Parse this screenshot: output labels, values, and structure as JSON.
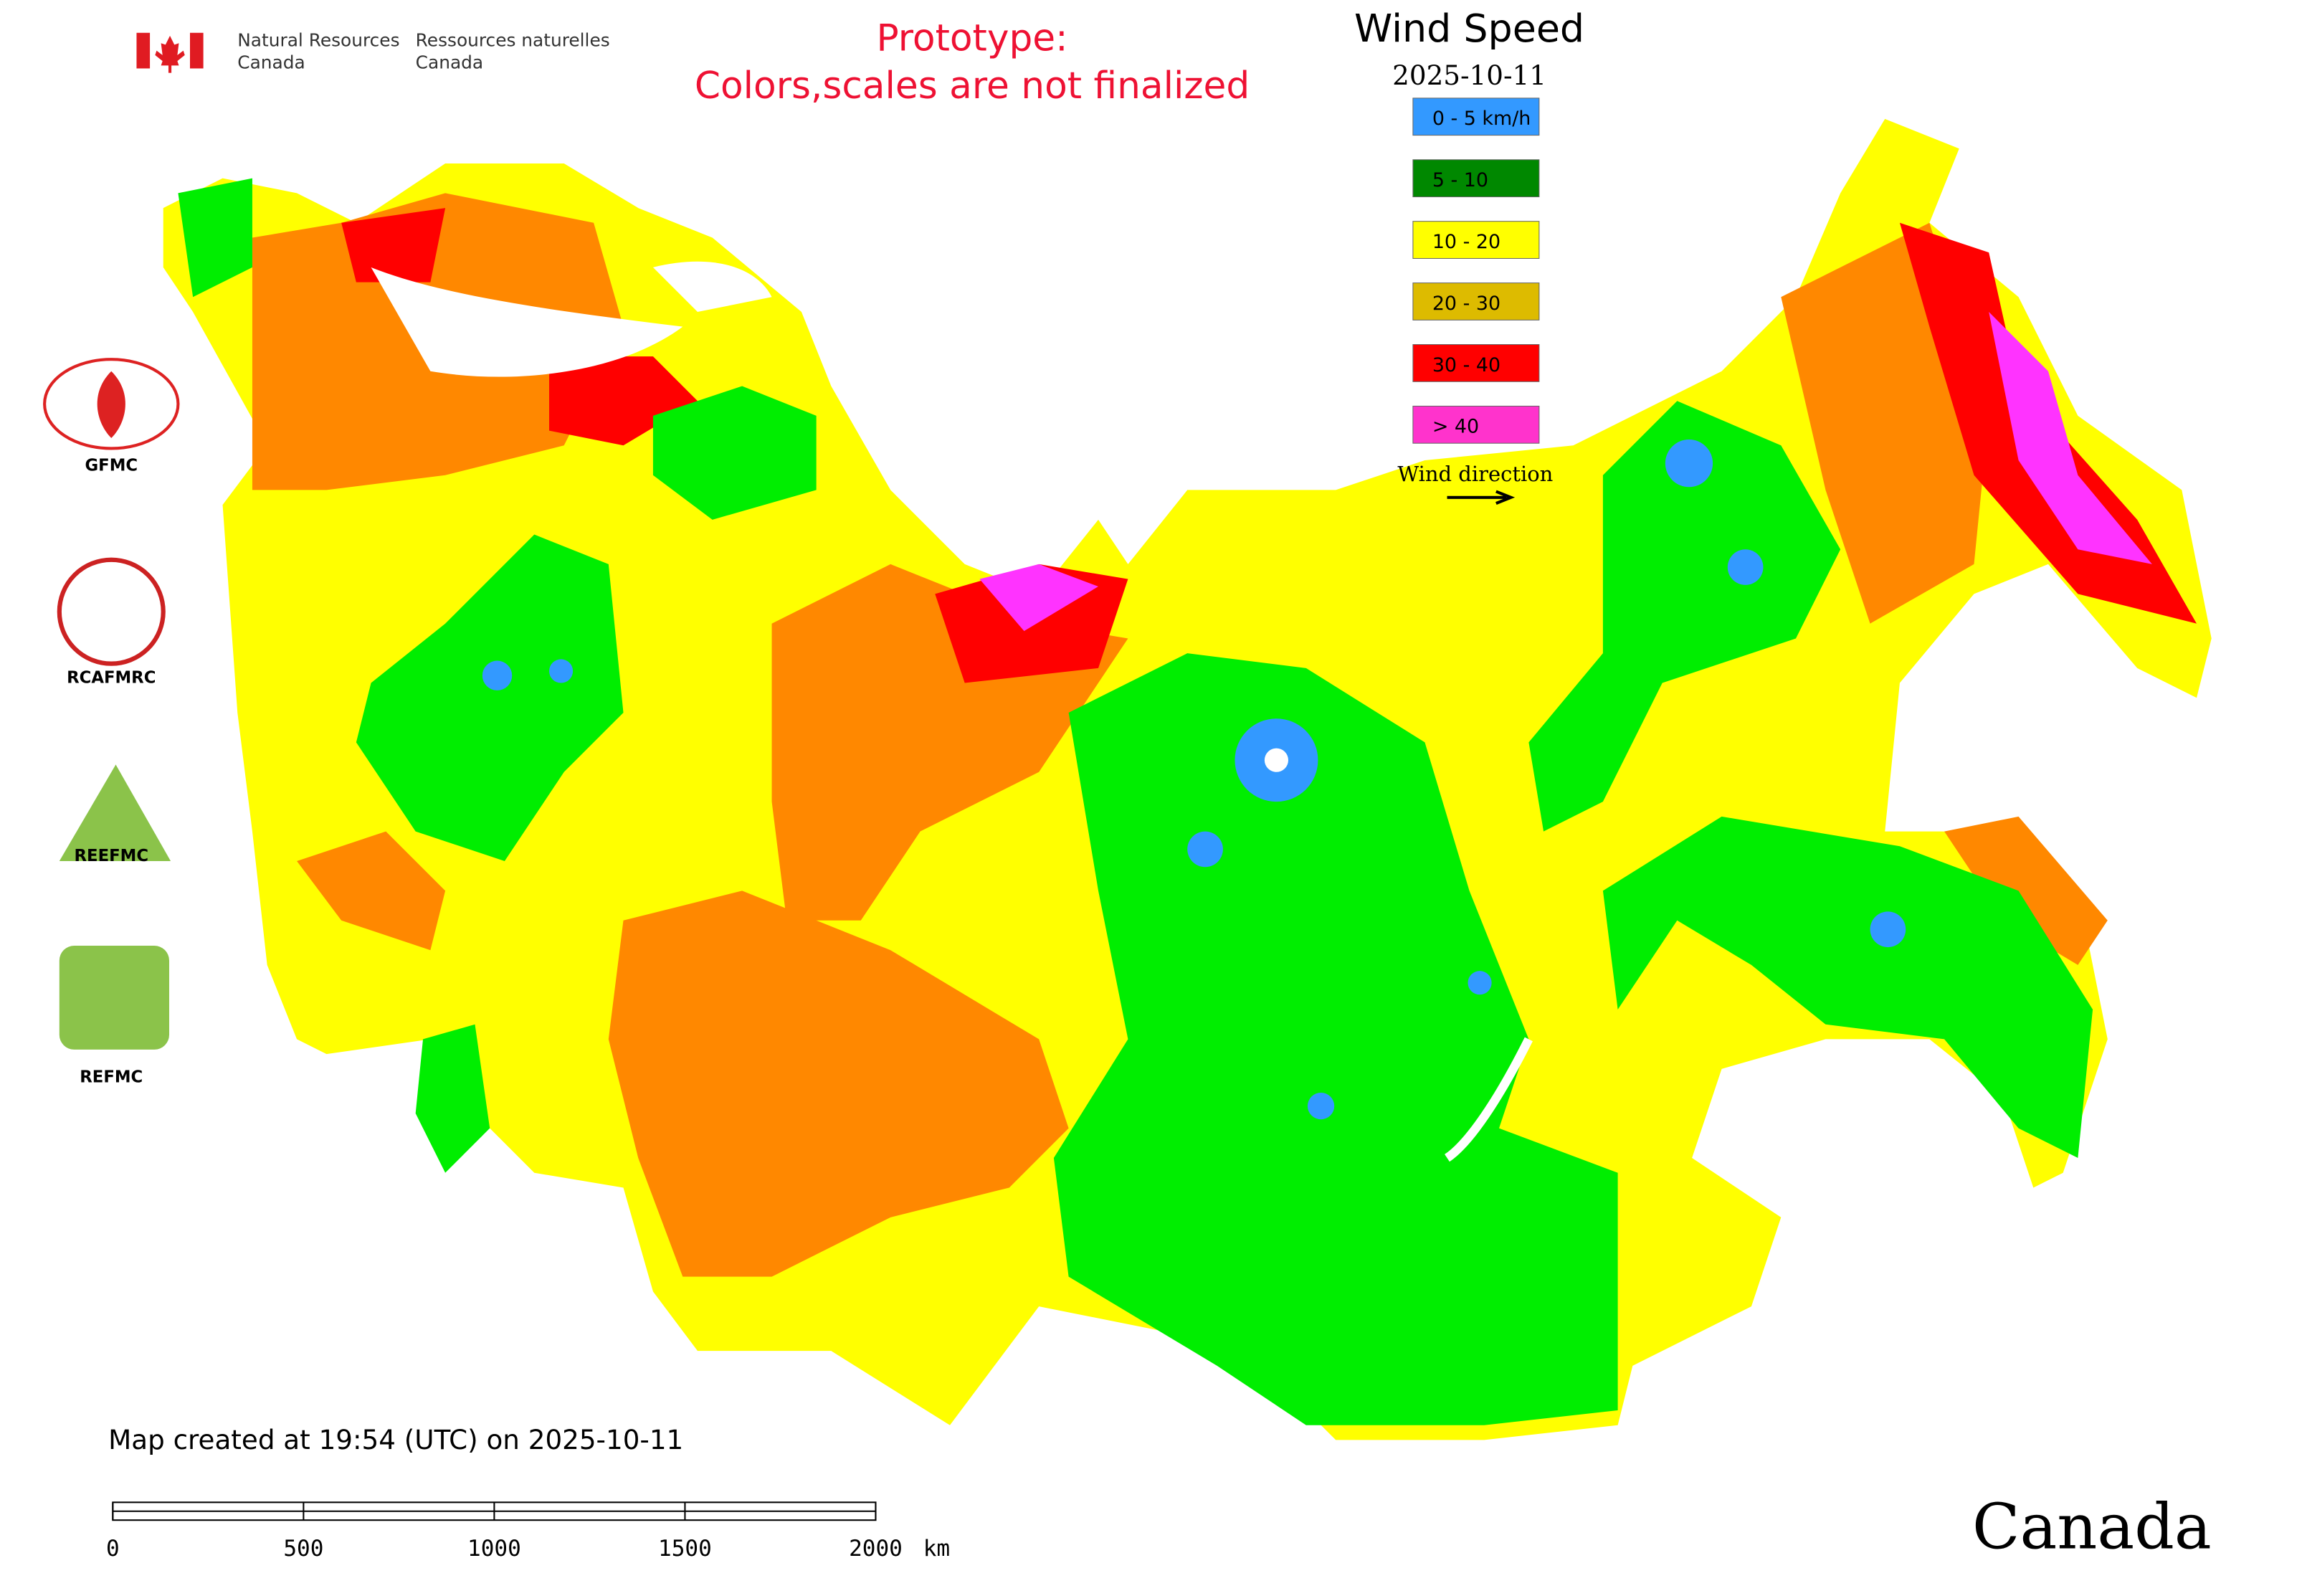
{
  "header": {
    "agency_en": [
      "Natural Resources",
      "Canada"
    ],
    "agency_fr": [
      "Ressources naturelles",
      "Canada"
    ],
    "notice": [
      "Prototype:",
      "Colors,scales are not finalized"
    ]
  },
  "legend": {
    "title": "Wind Speed",
    "date": "2025-10-11",
    "items": [
      {
        "label": "0 - 5 km/h",
        "color": "#3399ff"
      },
      {
        "label": "5 - 10",
        "color": "#008800"
      },
      {
        "label": "10 - 20",
        "color": "#ffff00"
      },
      {
        "label": "20 - 30",
        "color": "#ddbb00"
      },
      {
        "label": "30 - 40",
        "color": "#ff0000"
      },
      {
        "label": "> 40",
        "color": "#ff33cc"
      }
    ],
    "direction_label": "Wind direction"
  },
  "logos": [
    "GFMC",
    "RCAFMRC",
    "REEFMC",
    "REFMC"
  ],
  "footer": {
    "created": "Map created at 19:54 (UTC) on 2025-10-11",
    "wordmark": "Canada"
  },
  "scale_bar": {
    "ticks": [
      0,
      500,
      1000,
      1500,
      2000
    ],
    "unit": "km"
  }
}
